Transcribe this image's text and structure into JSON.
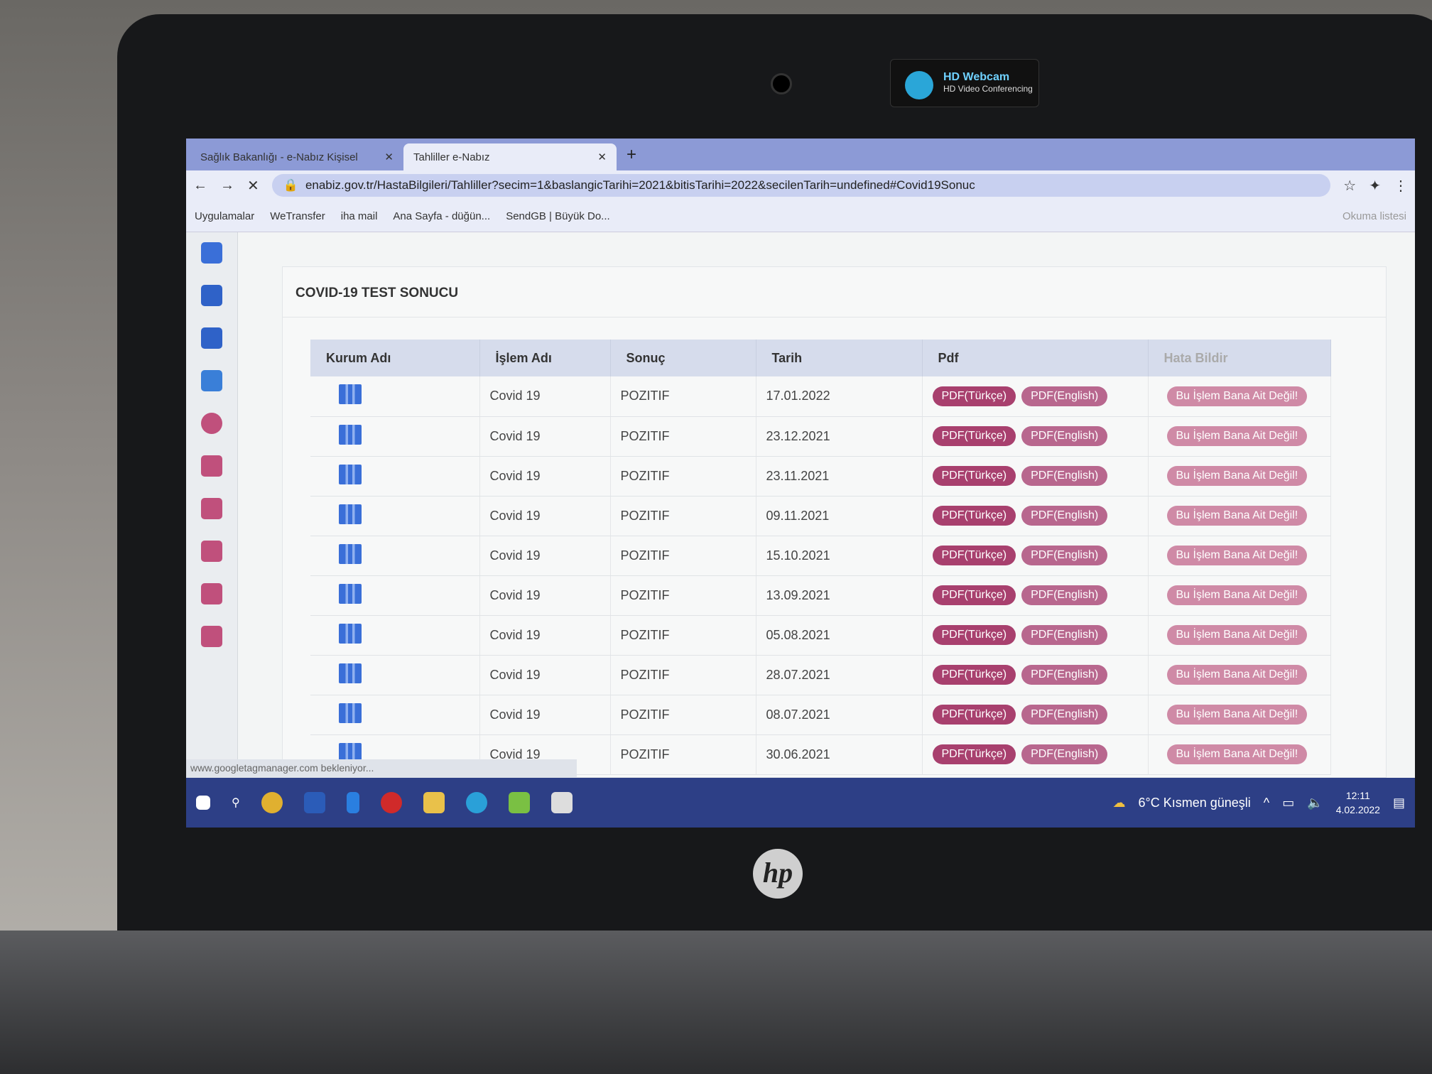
{
  "device": {
    "webcam_title": "HD Webcam",
    "webcam_subtitle": "HD Video Conferencing",
    "logo": "hp"
  },
  "browser": {
    "tabs": [
      {
        "label": "Sağlık Bakanlığı - e-Nabız Kişisel",
        "active": false
      },
      {
        "label": "Tahliller e-Nabız",
        "active": true
      }
    ],
    "url": "enabiz.gov.tr/HastaBilgileri/Tahliller?secim=1&baslangicTarihi=2021&bitisTarihi=2022&secilenTarih=undefined#Covid19Sonuc",
    "bookmarks": [
      "Uygulamalar",
      "WeTransfer",
      "iha mail",
      "Ana Sayfa - düğün...",
      "SendGB | Büyük Do..."
    ],
    "reading_list": "Okuma listesi",
    "status": "www.googletagmanager.com bekleniyor..."
  },
  "page": {
    "title": "COVID-19 TEST SONUCU",
    "columns": [
      "Kurum Adı",
      "İşlem Adı",
      "Sonuç",
      "Tarih",
      "Pdf",
      "Hata Bildir"
    ],
    "pdf_tr": "PDF(Türkçe)",
    "pdf_en": "PDF(English)",
    "report": "Bu İşlem Bana Ait Değil!",
    "rows": [
      {
        "islem": "Covid 19",
        "sonuc": "POZITIF",
        "tarih": "17.01.2022"
      },
      {
        "islem": "Covid 19",
        "sonuc": "POZITIF",
        "tarih": "23.12.2021"
      },
      {
        "islem": "Covid 19",
        "sonuc": "POZITIF",
        "tarih": "23.11.2021"
      },
      {
        "islem": "Covid 19",
        "sonuc": "POZITIF",
        "tarih": "09.11.2021"
      },
      {
        "islem": "Covid 19",
        "sonuc": "POZITIF",
        "tarih": "15.10.2021"
      },
      {
        "islem": "Covid 19",
        "sonuc": "POZITIF",
        "tarih": "13.09.2021"
      },
      {
        "islem": "Covid 19",
        "sonuc": "POZITIF",
        "tarih": "05.08.2021"
      },
      {
        "islem": "Covid 19",
        "sonuc": "POZITIF",
        "tarih": "28.07.2021"
      },
      {
        "islem": "Covid 19",
        "sonuc": "POZITIF",
        "tarih": "08.07.2021"
      },
      {
        "islem": "Covid 19",
        "sonuc": "POZITIF",
        "tarih": "30.06.2021"
      }
    ]
  },
  "taskbar": {
    "weather": "6°C  Kısmen güneşli",
    "time": "12:11",
    "date": "4.02.2022"
  },
  "colors": {
    "pdf_button": "#a8406e",
    "report_button": "#cf8aa6",
    "taskbar": "#2d3f86"
  }
}
